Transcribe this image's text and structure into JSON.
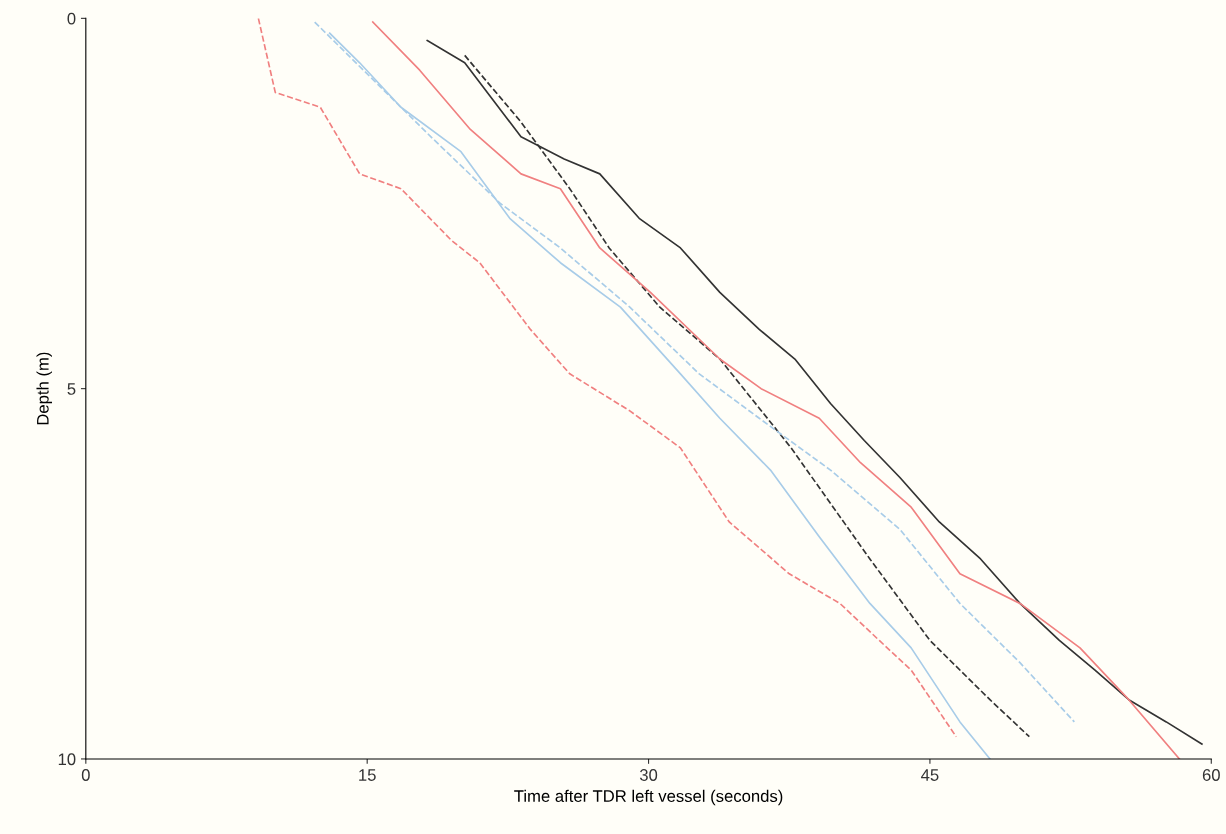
{
  "chart_data": {
    "type": "line",
    "xlabel": "Time after TDR left vessel (seconds)",
    "ylabel": "Depth (m)",
    "xlim": [
      0,
      60
    ],
    "xticks": [
      0,
      15,
      30,
      45,
      60
    ],
    "ylim": [
      10,
      0
    ],
    "yticks": [
      0,
      5,
      10
    ],
    "grid": false,
    "legend": false,
    "marker": "none",
    "series": [
      {
        "color": "#333333",
        "line_style": "solid",
        "x": [
          18.2,
          20.2,
          23.2,
          25.5,
          27.4,
          29.5,
          31.7,
          33.8,
          35.9,
          37.8,
          39.7,
          41.5,
          43.4,
          45.5,
          47.7,
          49.8,
          51.9,
          53.8,
          55.6,
          57.6,
          59.5
        ],
        "values": [
          0.3,
          0.6,
          1.6,
          1.9,
          2.1,
          2.7,
          3.1,
          3.7,
          4.2,
          4.6,
          5.2,
          5.7,
          6.2,
          6.8,
          7.3,
          7.9,
          8.4,
          8.8,
          9.2,
          9.5,
          9.8
        ]
      },
      {
        "color": "#333333",
        "line_style": "dashed",
        "x": [
          20.2,
          23.2,
          25.8,
          27.9,
          30.6,
          33.8,
          37.6,
          41.8,
          45.0,
          48.2,
          50.3
        ],
        "values": [
          0.5,
          1.4,
          2.3,
          3.1,
          3.9,
          4.6,
          5.8,
          7.3,
          8.4,
          9.2,
          9.7
        ]
      },
      {
        "color": "#f08080",
        "line_style": "solid",
        "x": [
          15.3,
          17.8,
          20.5,
          23.2,
          25.3,
          27.4,
          30.1,
          33.8,
          36.0,
          39.1,
          41.3,
          44.0,
          46.6,
          49.8,
          53.0,
          55.6,
          58.3
        ],
        "values": [
          0.05,
          0.7,
          1.5,
          2.1,
          2.3,
          3.1,
          3.7,
          4.6,
          5.0,
          5.4,
          6.0,
          6.6,
          7.5,
          7.9,
          8.5,
          9.2,
          10.0
        ]
      },
      {
        "color": "#f08080",
        "line_style": "dashed",
        "x": [
          9.2,
          10.1,
          12.5,
          14.6,
          16.8,
          19.5,
          21.0,
          23.7,
          25.8,
          29.0,
          31.7,
          34.3,
          37.5,
          40.2,
          42.3,
          44.0,
          46.4
        ],
        "values": [
          0.0,
          1.0,
          1.2,
          2.1,
          2.3,
          3.0,
          3.3,
          4.2,
          4.8,
          5.3,
          5.8,
          6.8,
          7.5,
          7.9,
          8.4,
          8.8,
          9.7
        ]
      },
      {
        "color": "#a8cce8",
        "line_style": "solid",
        "x": [
          13.0,
          14.6,
          16.8,
          20.0,
          22.6,
          25.3,
          28.5,
          31.7,
          33.8,
          36.5,
          39.1,
          41.8,
          44.0,
          46.6,
          48.2
        ],
        "values": [
          0.2,
          0.6,
          1.2,
          1.8,
          2.7,
          3.3,
          3.9,
          4.8,
          5.4,
          6.1,
          7.0,
          7.9,
          8.5,
          9.5,
          10.0
        ]
      },
      {
        "color": "#a8cce8",
        "line_style": "dashed",
        "x": [
          12.2,
          15.2,
          18.4,
          22.1,
          25.3,
          29.0,
          32.7,
          35.9,
          39.7,
          43.4,
          46.6,
          49.8,
          52.7
        ],
        "values": [
          0.05,
          0.8,
          1.6,
          2.5,
          3.1,
          3.9,
          4.8,
          5.4,
          6.1,
          6.9,
          7.9,
          8.7,
          9.5
        ]
      }
    ]
  }
}
